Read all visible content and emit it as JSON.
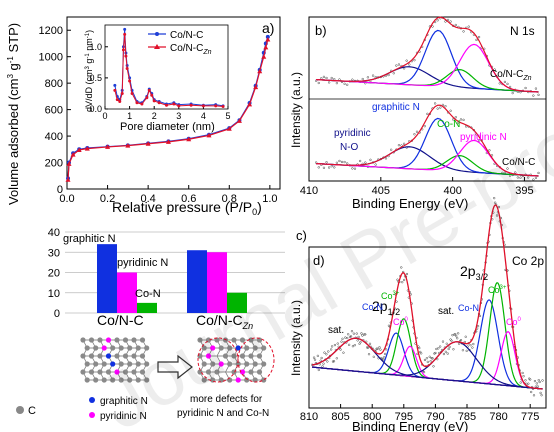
{
  "watermark": "Journal Pre-proof",
  "colors": {
    "co_nc": "#1f3fd6",
    "co_nczn": "#e0102a",
    "blue": "#1030e0",
    "magenta": "#ff00ff",
    "green": "#00b400",
    "darkblue": "#10108a",
    "envelope": "#e0102a"
  },
  "panel_a": {
    "label": "a)",
    "xlabel": "Relative pressure (P/P0)",
    "xlabel_main": "Relative pressure (P/P",
    "xlabel_sub": "0",
    "xlabel_end": ")",
    "ylabel": "Volume adsorbed (cm3 g-1 STP)",
    "xticks": [
      "0.0",
      "0.2",
      "0.4",
      "0.6",
      "0.8",
      "1.0"
    ],
    "yticks": [
      "0",
      "200",
      "400",
      "600",
      "800",
      "1000",
      "1200"
    ],
    "xlim": [
      0,
      1.05
    ],
    "ylim": [
      0,
      1300
    ],
    "legend": [
      "Co/N-C",
      "Co/N-C_Zn"
    ],
    "inset": {
      "xlabel": "Pore diameter (nm)",
      "ylabel": "dV/dD (cm3 g-1 nm-1)",
      "xticks": [
        "0",
        "1",
        "2",
        "3",
        "4",
        "5"
      ],
      "yticks": [
        "0.0",
        "0.5",
        "1.0"
      ],
      "xlim": [
        0,
        5
      ],
      "ylim": [
        0,
        1.35
      ]
    }
  },
  "panel_b": {
    "label": "b)",
    "title": "N 1s",
    "xlabel": "Binding Energy (eV)",
    "ylabel": "Intensity (a.u.)",
    "xticks": [
      "410",
      "405",
      "400",
      "395"
    ],
    "xlim": [
      410,
      393.5
    ],
    "sample_top": "Co/N-C_Zn",
    "sample_bottom": "Co/N-C",
    "annotations": [
      "graphitic N",
      "Co-N",
      "pyridinic N",
      "pyridinic",
      "N-O"
    ]
  },
  "panel_bar": {
    "yticks": [
      "0",
      "10",
      "20",
      "30",
      "40"
    ],
    "groups": [
      "Co/N-C",
      "Co/N-C_Zn"
    ],
    "series_labels": [
      "graphitic N",
      "pyridinic N",
      "Co-N"
    ]
  },
  "panel_c": {
    "label": "c)",
    "panel_id": "d)",
    "title": "Co 2p",
    "xlabel": "Binding Energy (eV)",
    "ylabel": "Intensity (a.u.)",
    "xticks": [
      "810",
      "805",
      "800",
      "795",
      "790",
      "785",
      "780",
      "775"
    ],
    "xlim": [
      810,
      772.5
    ],
    "annotations": [
      "2p1/2",
      "2p3/2",
      "sat.",
      "sat.",
      "Co-N",
      "Co-N",
      "Co3+",
      "Co3+",
      "Co0",
      "Co0"
    ]
  },
  "schematic": {
    "legend": [
      "C",
      "graphitic N",
      "pyridinic N"
    ],
    "caption_line1": "more defects for",
    "caption_line2": "pyridinic N and Co-N"
  },
  "chart_data": [
    {
      "type": "line",
      "title": "",
      "xlabel": "Relative pressure (P/P0)",
      "ylabel": "Volume adsorbed (cm3 g-1 STP)",
      "xlim": [
        0,
        1.05
      ],
      "ylim": [
        0,
        1300
      ],
      "series": [
        {
          "name": "Co/N-C",
          "x": [
            0.005,
            0.01,
            0.03,
            0.06,
            0.1,
            0.2,
            0.3,
            0.4,
            0.5,
            0.6,
            0.7,
            0.8,
            0.85,
            0.9,
            0.93,
            0.95,
            0.97,
            0.98,
            0.99
          ],
          "y": [
            80,
            200,
            270,
            300,
            310,
            320,
            330,
            345,
            360,
            380,
            410,
            460,
            520,
            650,
            780,
            900,
            1030,
            1100,
            1150
          ]
        },
        {
          "name": "Co/N-C_Zn",
          "x": [
            0.005,
            0.01,
            0.03,
            0.06,
            0.1,
            0.2,
            0.3,
            0.4,
            0.5,
            0.6,
            0.7,
            0.8,
            0.85,
            0.9,
            0.93,
            0.95,
            0.97,
            0.98,
            0.99
          ],
          "y": [
            70,
            190,
            260,
            295,
            305,
            318,
            328,
            342,
            356,
            376,
            405,
            455,
            515,
            640,
            770,
            890,
            1000,
            1070,
            1130
          ]
        }
      ]
    },
    {
      "type": "line",
      "title": "",
      "xlabel": "Pore diameter (nm)",
      "ylabel": "dV/dD (cm3 g-1 nm-1)",
      "xlim": [
        0,
        5
      ],
      "ylim": [
        0,
        1.35
      ],
      "series": [
        {
          "name": "Co/N-C",
          "x": [
            0.4,
            0.5,
            0.6,
            0.7,
            0.75,
            0.8,
            0.85,
            0.9,
            1.0,
            1.1,
            1.3,
            1.5,
            1.7,
            1.8,
            1.9,
            2.0,
            2.2,
            2.5,
            2.8,
            3.0,
            3.5,
            4.0,
            4.5,
            4.8
          ],
          "y": [
            0.38,
            0.2,
            0.15,
            0.3,
            1.0,
            1.28,
            0.9,
            0.7,
            0.5,
            0.3,
            0.12,
            0.1,
            0.2,
            0.32,
            0.25,
            0.15,
            0.12,
            0.08,
            0.1,
            0.07,
            0.08,
            0.06,
            0.07,
            0.05
          ]
        },
        {
          "name": "Co/N-C_Zn",
          "x": [
            0.4,
            0.5,
            0.6,
            0.7,
            0.75,
            0.8,
            0.85,
            0.9,
            1.0,
            1.1,
            1.3,
            1.5,
            1.7,
            1.8,
            1.9,
            2.0,
            2.2,
            2.5,
            2.8,
            3.0,
            3.5,
            4.0,
            4.5,
            4.8
          ],
          "y": [
            0.3,
            0.15,
            0.12,
            0.25,
            0.95,
            1.2,
            0.85,
            0.65,
            0.45,
            0.25,
            0.1,
            0.08,
            0.18,
            0.3,
            0.22,
            0.13,
            0.1,
            0.06,
            0.08,
            0.05,
            0.06,
            0.05,
            0.05,
            0.04
          ]
        }
      ]
    },
    {
      "type": "bar",
      "categories": [
        "Co/N-C",
        "Co/N-C_Zn"
      ],
      "ylim": [
        0,
        40
      ],
      "series": [
        {
          "name": "graphitic N",
          "values": [
            34,
            31
          ]
        },
        {
          "name": "pyridinic N",
          "values": [
            20,
            30
          ]
        },
        {
          "name": "Co-N",
          "values": [
            5,
            10
          ]
        }
      ]
    }
  ]
}
